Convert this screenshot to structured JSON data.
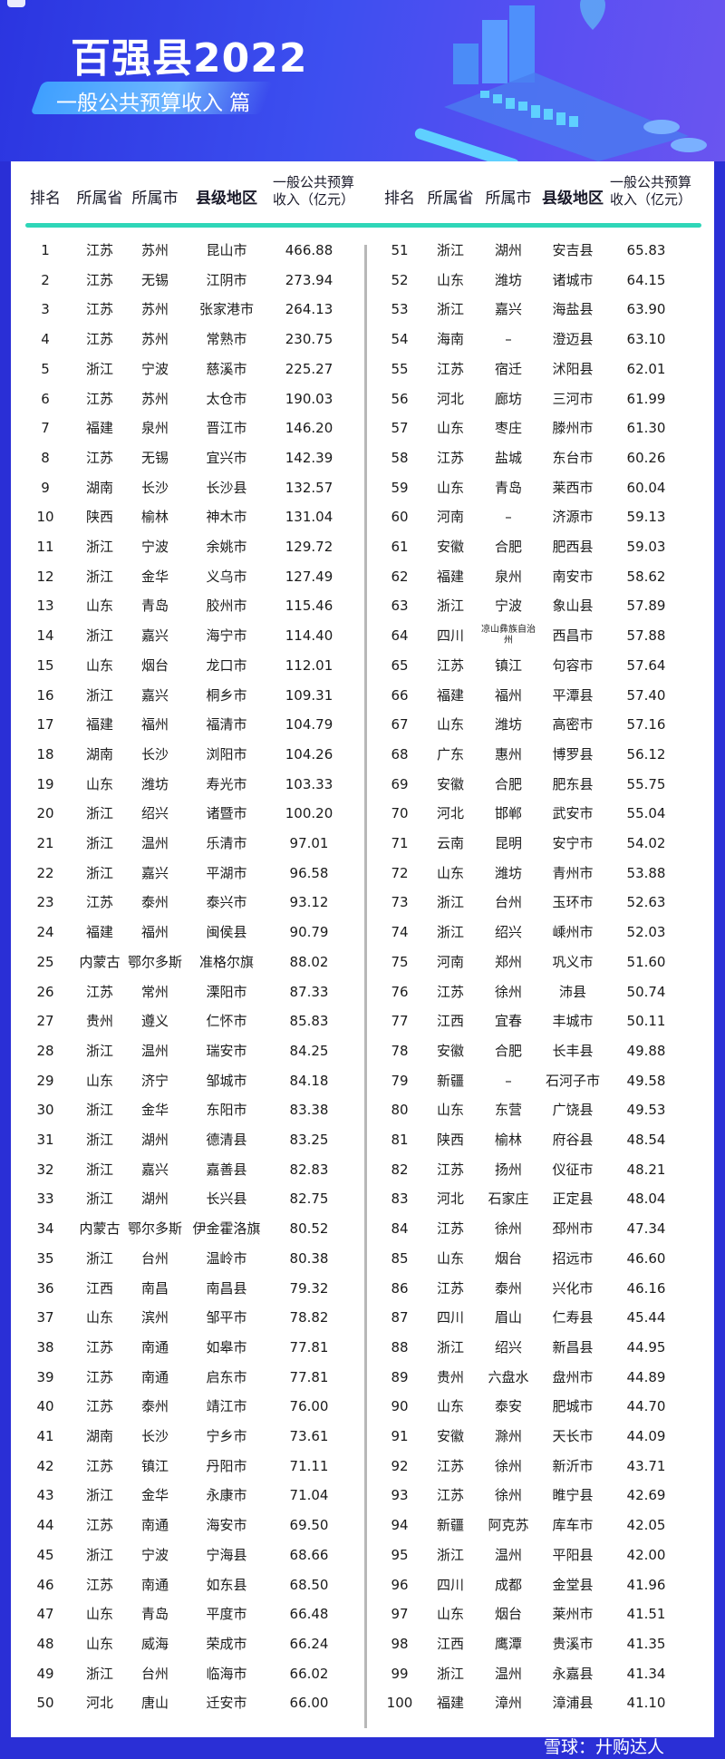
{
  "header": {
    "title": "百强县2022",
    "subtitle": "一般公共预算收入 篇"
  },
  "colors": {
    "banner": "#2b35e0",
    "accent_line": "#2fd6b8",
    "divider": "#b8b8b8"
  },
  "table": {
    "columns": [
      "排名",
      "所属省",
      "所属市",
      "县级地区",
      "一般公共预算",
      "收入（亿元）"
    ],
    "rows": [
      [
        "1",
        "江苏",
        "苏州",
        "昆山市",
        "466.88"
      ],
      [
        "2",
        "江苏",
        "无锡",
        "江阴市",
        "273.94"
      ],
      [
        "3",
        "江苏",
        "苏州",
        "张家港市",
        "264.13"
      ],
      [
        "4",
        "江苏",
        "苏州",
        "常熟市",
        "230.75"
      ],
      [
        "5",
        "浙江",
        "宁波",
        "慈溪市",
        "225.27"
      ],
      [
        "6",
        "江苏",
        "苏州",
        "太仓市",
        "190.03"
      ],
      [
        "7",
        "福建",
        "泉州",
        "晋江市",
        "146.20"
      ],
      [
        "8",
        "江苏",
        "无锡",
        "宜兴市",
        "142.39"
      ],
      [
        "9",
        "湖南",
        "长沙",
        "长沙县",
        "132.57"
      ],
      [
        "10",
        "陕西",
        "榆林",
        "神木市",
        "131.04"
      ],
      [
        "11",
        "浙江",
        "宁波",
        "余姚市",
        "129.72"
      ],
      [
        "12",
        "浙江",
        "金华",
        "义乌市",
        "127.49"
      ],
      [
        "13",
        "山东",
        "青岛",
        "胶州市",
        "115.46"
      ],
      [
        "14",
        "浙江",
        "嘉兴",
        "海宁市",
        "114.40"
      ],
      [
        "15",
        "山东",
        "烟台",
        "龙口市",
        "112.01"
      ],
      [
        "16",
        "浙江",
        "嘉兴",
        "桐乡市",
        "109.31"
      ],
      [
        "17",
        "福建",
        "福州",
        "福清市",
        "104.79"
      ],
      [
        "18",
        "湖南",
        "长沙",
        "浏阳市",
        "104.26"
      ],
      [
        "19",
        "山东",
        "潍坊",
        "寿光市",
        "103.33"
      ],
      [
        "20",
        "浙江",
        "绍兴",
        "诸暨市",
        "100.20"
      ],
      [
        "21",
        "浙江",
        "温州",
        "乐清市",
        "97.01"
      ],
      [
        "22",
        "浙江",
        "嘉兴",
        "平湖市",
        "96.58"
      ],
      [
        "23",
        "江苏",
        "泰州",
        "泰兴市",
        "93.12"
      ],
      [
        "24",
        "福建",
        "福州",
        "闽侯县",
        "90.79"
      ],
      [
        "25",
        "内蒙古",
        "鄂尔多斯",
        "准格尔旗",
        "88.02"
      ],
      [
        "26",
        "江苏",
        "常州",
        "溧阳市",
        "87.33"
      ],
      [
        "27",
        "贵州",
        "遵义",
        "仁怀市",
        "85.83"
      ],
      [
        "28",
        "浙江",
        "温州",
        "瑞安市",
        "84.25"
      ],
      [
        "29",
        "山东",
        "济宁",
        "邹城市",
        "84.18"
      ],
      [
        "30",
        "浙江",
        "金华",
        "东阳市",
        "83.38"
      ],
      [
        "31",
        "浙江",
        "湖州",
        "德清县",
        "83.25"
      ],
      [
        "32",
        "浙江",
        "嘉兴",
        "嘉善县",
        "82.83"
      ],
      [
        "33",
        "浙江",
        "湖州",
        "长兴县",
        "82.75"
      ],
      [
        "34",
        "内蒙古",
        "鄂尔多斯",
        "伊金霍洛旗",
        "80.52"
      ],
      [
        "35",
        "浙江",
        "台州",
        "温岭市",
        "80.38"
      ],
      [
        "36",
        "江西",
        "南昌",
        "南昌县",
        "79.32"
      ],
      [
        "37",
        "山东",
        "滨州",
        "邹平市",
        "78.82"
      ],
      [
        "38",
        "江苏",
        "南通",
        "如皋市",
        "77.81"
      ],
      [
        "39",
        "江苏",
        "南通",
        "启东市",
        "77.81"
      ],
      [
        "40",
        "江苏",
        "泰州",
        "靖江市",
        "76.00"
      ],
      [
        "41",
        "湖南",
        "长沙",
        "宁乡市",
        "73.61"
      ],
      [
        "42",
        "江苏",
        "镇江",
        "丹阳市",
        "71.11"
      ],
      [
        "43",
        "浙江",
        "金华",
        "永康市",
        "71.04"
      ],
      [
        "44",
        "江苏",
        "南通",
        "海安市",
        "69.50"
      ],
      [
        "45",
        "浙江",
        "宁波",
        "宁海县",
        "68.66"
      ],
      [
        "46",
        "江苏",
        "南通",
        "如东县",
        "68.50"
      ],
      [
        "47",
        "山东",
        "青岛",
        "平度市",
        "66.48"
      ],
      [
        "48",
        "山东",
        "威海",
        "荣成市",
        "66.24"
      ],
      [
        "49",
        "浙江",
        "台州",
        "临海市",
        "66.02"
      ],
      [
        "50",
        "河北",
        "唐山",
        "迁安市",
        "66.00"
      ],
      [
        "51",
        "浙江",
        "湖州",
        "安吉县",
        "65.83"
      ],
      [
        "52",
        "山东",
        "潍坊",
        "诸城市",
        "64.15"
      ],
      [
        "53",
        "浙江",
        "嘉兴",
        "海盐县",
        "63.90"
      ],
      [
        "54",
        "海南",
        "–",
        "澄迈县",
        "63.10"
      ],
      [
        "55",
        "江苏",
        "宿迁",
        "沭阳县",
        "62.01"
      ],
      [
        "56",
        "河北",
        "廊坊",
        "三河市",
        "61.99"
      ],
      [
        "57",
        "山东",
        "枣庄",
        "滕州市",
        "61.30"
      ],
      [
        "58",
        "江苏",
        "盐城",
        "东台市",
        "60.26"
      ],
      [
        "59",
        "山东",
        "青岛",
        "莱西市",
        "60.04"
      ],
      [
        "60",
        "河南",
        "–",
        "济源市",
        "59.13"
      ],
      [
        "61",
        "安徽",
        "合肥",
        "肥西县",
        "59.03"
      ],
      [
        "62",
        "福建",
        "泉州",
        "南安市",
        "58.62"
      ],
      [
        "63",
        "浙江",
        "宁波",
        "象山县",
        "57.89"
      ],
      [
        "64",
        "四川",
        "凉山彝族自治州",
        "西昌市",
        "57.88"
      ],
      [
        "65",
        "江苏",
        "镇江",
        "句容市",
        "57.64"
      ],
      [
        "66",
        "福建",
        "福州",
        "平潭县",
        "57.40"
      ],
      [
        "67",
        "山东",
        "潍坊",
        "高密市",
        "57.16"
      ],
      [
        "68",
        "广东",
        "惠州",
        "博罗县",
        "56.12"
      ],
      [
        "69",
        "安徽",
        "合肥",
        "肥东县",
        "55.75"
      ],
      [
        "70",
        "河北",
        "邯郸",
        "武安市",
        "55.04"
      ],
      [
        "71",
        "云南",
        "昆明",
        "安宁市",
        "54.02"
      ],
      [
        "72",
        "山东",
        "潍坊",
        "青州市",
        "53.88"
      ],
      [
        "73",
        "浙江",
        "台州",
        "玉环市",
        "52.63"
      ],
      [
        "74",
        "浙江",
        "绍兴",
        "嵊州市",
        "52.03"
      ],
      [
        "75",
        "河南",
        "郑州",
        "巩义市",
        "51.60"
      ],
      [
        "76",
        "江苏",
        "徐州",
        "沛县",
        "50.74"
      ],
      [
        "77",
        "江西",
        "宜春",
        "丰城市",
        "50.11"
      ],
      [
        "78",
        "安徽",
        "合肥",
        "长丰县",
        "49.88"
      ],
      [
        "79",
        "新疆",
        "–",
        "石河子市",
        "49.58"
      ],
      [
        "80",
        "山东",
        "东营",
        "广饶县",
        "49.53"
      ],
      [
        "81",
        "陕西",
        "榆林",
        "府谷县",
        "48.54"
      ],
      [
        "82",
        "江苏",
        "扬州",
        "仪征市",
        "48.21"
      ],
      [
        "83",
        "河北",
        "石家庄",
        "正定县",
        "48.04"
      ],
      [
        "84",
        "江苏",
        "徐州",
        "邳州市",
        "47.34"
      ],
      [
        "85",
        "山东",
        "烟台",
        "招远市",
        "46.60"
      ],
      [
        "86",
        "江苏",
        "泰州",
        "兴化市",
        "46.16"
      ],
      [
        "87",
        "四川",
        "眉山",
        "仁寿县",
        "45.44"
      ],
      [
        "88",
        "浙江",
        "绍兴",
        "新昌县",
        "44.95"
      ],
      [
        "89",
        "贵州",
        "六盘水",
        "盘州市",
        "44.89"
      ],
      [
        "90",
        "山东",
        "泰安",
        "肥城市",
        "44.70"
      ],
      [
        "91",
        "安徽",
        "滁州",
        "天长市",
        "44.09"
      ],
      [
        "92",
        "江苏",
        "徐州",
        "新沂市",
        "43.71"
      ],
      [
        "93",
        "江苏",
        "徐州",
        "睢宁县",
        "42.69"
      ],
      [
        "94",
        "新疆",
        "阿克苏",
        "库车市",
        "42.05"
      ],
      [
        "95",
        "浙江",
        "温州",
        "平阳县",
        "42.00"
      ],
      [
        "96",
        "四川",
        "成都",
        "金堂县",
        "41.96"
      ],
      [
        "97",
        "山东",
        "烟台",
        "莱州市",
        "41.51"
      ],
      [
        "98",
        "江西",
        "鹰潭",
        "贵溪市",
        "41.35"
      ],
      [
        "99",
        "浙江",
        "温州",
        "永嘉县",
        "41.34"
      ],
      [
        "100",
        "福建",
        "漳州",
        "漳浦县",
        "41.10"
      ]
    ]
  },
  "watermark": "雪球：廾购达人"
}
